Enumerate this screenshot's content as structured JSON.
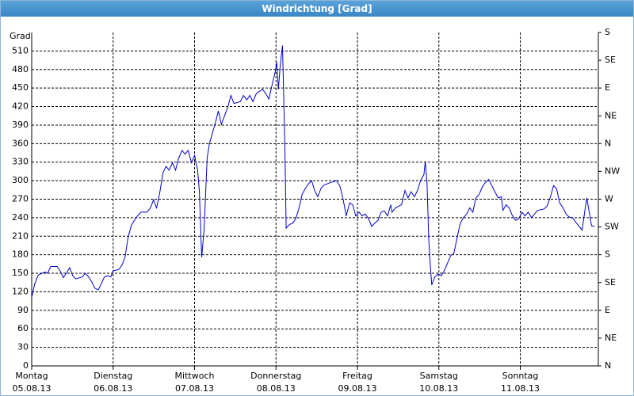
{
  "chart_data": {
    "type": "line",
    "title": "Windrichtung [Grad]",
    "y_label": "Grad",
    "xlim": [
      0,
      167
    ],
    "ylim": [
      0,
      540
    ],
    "y2lim": [
      0,
      540
    ],
    "xticks": [
      {
        "value": 0,
        "label": "Montag",
        "date": "05.08.13"
      },
      {
        "value": 24,
        "label": "Dienstag",
        "date": "06.08.13"
      },
      {
        "value": 48,
        "label": "Mittwoch",
        "date": "07.08.13"
      },
      {
        "value": 72,
        "label": "Donnerstag",
        "date": "08.08.13"
      },
      {
        "value": 96,
        "label": "Freitag",
        "date": "09.08.13"
      },
      {
        "value": 120,
        "label": "Samstag",
        "date": "10.08.13"
      },
      {
        "value": 144,
        "label": "Sonntag",
        "date": "11.08.13"
      }
    ],
    "yticks": [
      0,
      30,
      60,
      90,
      120,
      150,
      180,
      210,
      240,
      270,
      300,
      330,
      360,
      390,
      420,
      450,
      480,
      510
    ],
    "y2ticks": [
      {
        "value": 0,
        "label": "N"
      },
      {
        "value": 45,
        "label": "NE"
      },
      {
        "value": 90,
        "label": "E"
      },
      {
        "value": 135,
        "label": "SE"
      },
      {
        "value": 180,
        "label": "S"
      },
      {
        "value": 225,
        "label": "SW"
      },
      {
        "value": 270,
        "label": "W"
      },
      {
        "value": 315,
        "label": "NW"
      },
      {
        "value": 360,
        "label": "N"
      },
      {
        "value": 405,
        "label": "NE"
      },
      {
        "value": 450,
        "label": "E"
      },
      {
        "value": 495,
        "label": "SE"
      },
      {
        "value": 540,
        "label": "S"
      }
    ],
    "grid": true,
    "series": [
      {
        "color": "#0000cc",
        "x": [
          0,
          0.9,
          1.9,
          3.0,
          4.0,
          4.7,
          5.6,
          7.5,
          8.4,
          9.3,
          10.3,
          11.2,
          12.1,
          13.0,
          14.9,
          15.8,
          16.8,
          17.7,
          18.6,
          19.6,
          20.5,
          21.4,
          22.4,
          23.3,
          24.0,
          25.6,
          26.6,
          27.5,
          28.4,
          29.4,
          30.3,
          31.2,
          32.2,
          34.0,
          35.0,
          35.9,
          36.8,
          37.7,
          38.7,
          39.6,
          40.5,
          41.5,
          42.4,
          43.3,
          44.3,
          45.2,
          46.1,
          47.1,
          48.0,
          48.9,
          49.4,
          50.1,
          50.8,
          51.7,
          52.4,
          53.1,
          54.1,
          55.0,
          55.9,
          56.9,
          57.8,
          58.7,
          59.6,
          61.5,
          62.4,
          63.4,
          64.3,
          65.2,
          66.2,
          68.0,
          69.0,
          69.9,
          70.8,
          71.8,
          72.2,
          72.7,
          73.2,
          73.9,
          74.1,
          74.6,
          75.0,
          76.0,
          76.9,
          77.8,
          78.8,
          79.7,
          80.6,
          81.6,
          82.5,
          83.4,
          84.3,
          85.3,
          86.2,
          88.1,
          89.9,
          90.9,
          91.8,
          92.7,
          93.7,
          94.6,
          95.5,
          96.5,
          97.4,
          98.3,
          99.3,
          100.2,
          101.1,
          102.1,
          103.0,
          103.9,
          104.9,
          105.8,
          106.2,
          107.2,
          109.0,
          110.0,
          110.9,
          111.8,
          112.8,
          113.7,
          114.6,
          115.6,
          116.0,
          116.5,
          117.0,
          117.4,
          117.9,
          118.8,
          119.8,
          120.7,
          121.6,
          122.6,
          123.5,
          124.4,
          125.4,
          126.3,
          127.2,
          128.2,
          129.1,
          130.0,
          130.9,
          131.9,
          132.8,
          133.7,
          134.7,
          135.6,
          136.5,
          137.5,
          138.4,
          138.9,
          139.8,
          140.7,
          141.7,
          142.6,
          143.5,
          144.5,
          145.4,
          146.3,
          147.3,
          148.2,
          149.1,
          151.0,
          151.9,
          152.9,
          153.8,
          154.7,
          155.6,
          156.6,
          157.5,
          158.4,
          159.4,
          160.3,
          161.2,
          162.2,
          163.1,
          163.6,
          164.0,
          165.0,
          165.9
        ],
        "values": [
          111,
          133,
          147,
          150,
          152,
          150,
          161,
          161,
          154,
          143,
          151,
          159,
          146,
          141,
          144,
          150,
          144,
          136,
          126,
          123,
          133,
          144,
          146,
          144,
          154,
          156,
          163,
          176,
          208,
          228,
          236,
          243,
          249,
          249,
          256,
          269,
          256,
          279,
          313,
          323,
          317,
          329,
          317,
          336,
          349,
          343,
          349,
          329,
          341,
          317,
          284,
          176,
          220,
          336,
          361,
          374,
          393,
          413,
          391,
          406,
          419,
          438,
          425,
          428,
          438,
          431,
          438,
          428,
          441,
          448,
          441,
          432,
          454,
          477,
          492,
          448,
          483,
          519,
          477,
          361,
          223,
          229,
          231,
          238,
          256,
          278,
          287,
          295,
          300,
          284,
          274,
          288,
          293,
          297,
          300,
          290,
          269,
          243,
          264,
          261,
          243,
          249,
          243,
          246,
          238,
          226,
          231,
          236,
          249,
          251,
          243,
          261,
          249,
          256,
          261,
          284,
          272,
          282,
          274,
          284,
          300,
          310,
          331,
          297,
          208,
          169,
          131,
          144,
          149,
          146,
          154,
          167,
          179,
          182,
          208,
          231,
          240,
          246,
          256,
          249,
          272,
          278,
          290,
          297,
          302,
          292,
          282,
          272,
          274,
          252,
          261,
          256,
          243,
          236,
          238,
          249,
          243,
          249,
          240,
          246,
          252,
          254,
          259,
          274,
          292,
          287,
          264,
          256,
          246,
          241,
          240,
          233,
          227,
          220,
          254,
          272,
          259,
          227,
          226
        ]
      }
    ]
  }
}
